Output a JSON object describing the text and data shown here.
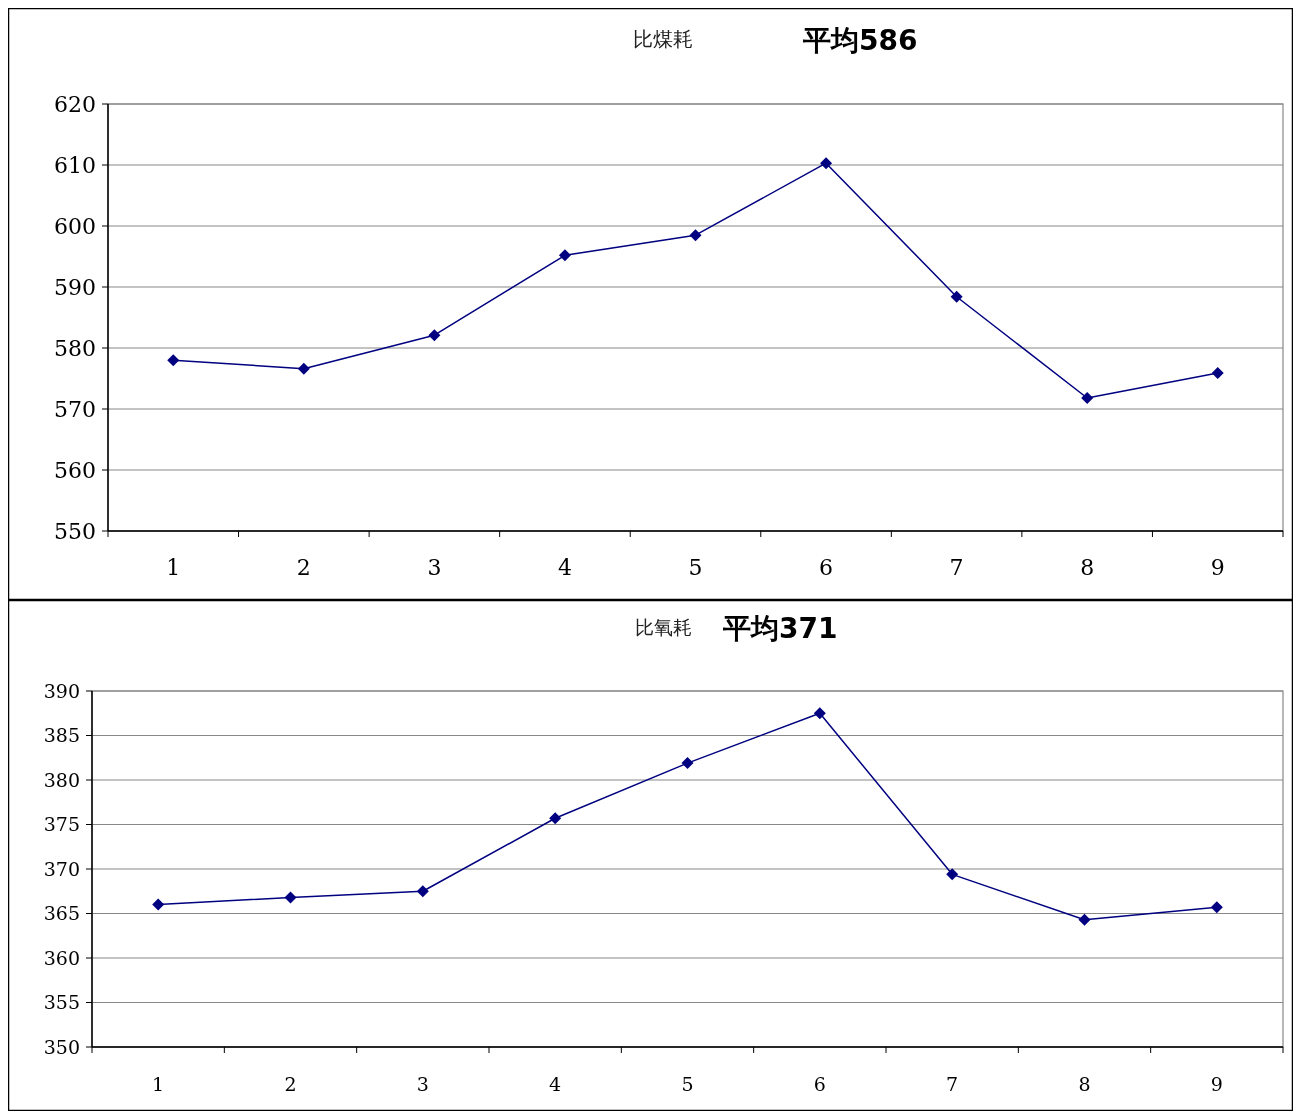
{
  "chart_data": [
    {
      "type": "line",
      "title": "比煤耗",
      "subtitle": "平均586",
      "categories": [
        "1",
        "2",
        "3",
        "4",
        "5",
        "6",
        "7",
        "8",
        "9"
      ],
      "series": [
        {
          "color": "#000080",
          "values": [
            578.0,
            576.6,
            582.1,
            595.2,
            598.5,
            610.3,
            588.4,
            571.8,
            575.9
          ]
        }
      ],
      "ylim": [
        550,
        620
      ],
      "yticks": [
        550,
        560,
        570,
        580,
        590,
        600,
        610,
        620
      ],
      "grid": "y",
      "marker": "diamond",
      "line_style": "solid"
    },
    {
      "type": "line",
      "title": "比氧耗",
      "subtitle": "平均371",
      "categories": [
        "1",
        "2",
        "3",
        "4",
        "5",
        "6",
        "7",
        "8",
        "9"
      ],
      "series": [
        {
          "color": "#000080",
          "values": [
            366.0,
            366.8,
            367.5,
            375.7,
            381.9,
            387.5,
            369.4,
            364.3,
            365.7
          ]
        }
      ],
      "ylim": [
        350,
        390
      ],
      "yticks": [
        350,
        355,
        360,
        365,
        370,
        375,
        380,
        385,
        390
      ],
      "grid": "y",
      "marker": "diamond",
      "line_style": "solid"
    }
  ]
}
